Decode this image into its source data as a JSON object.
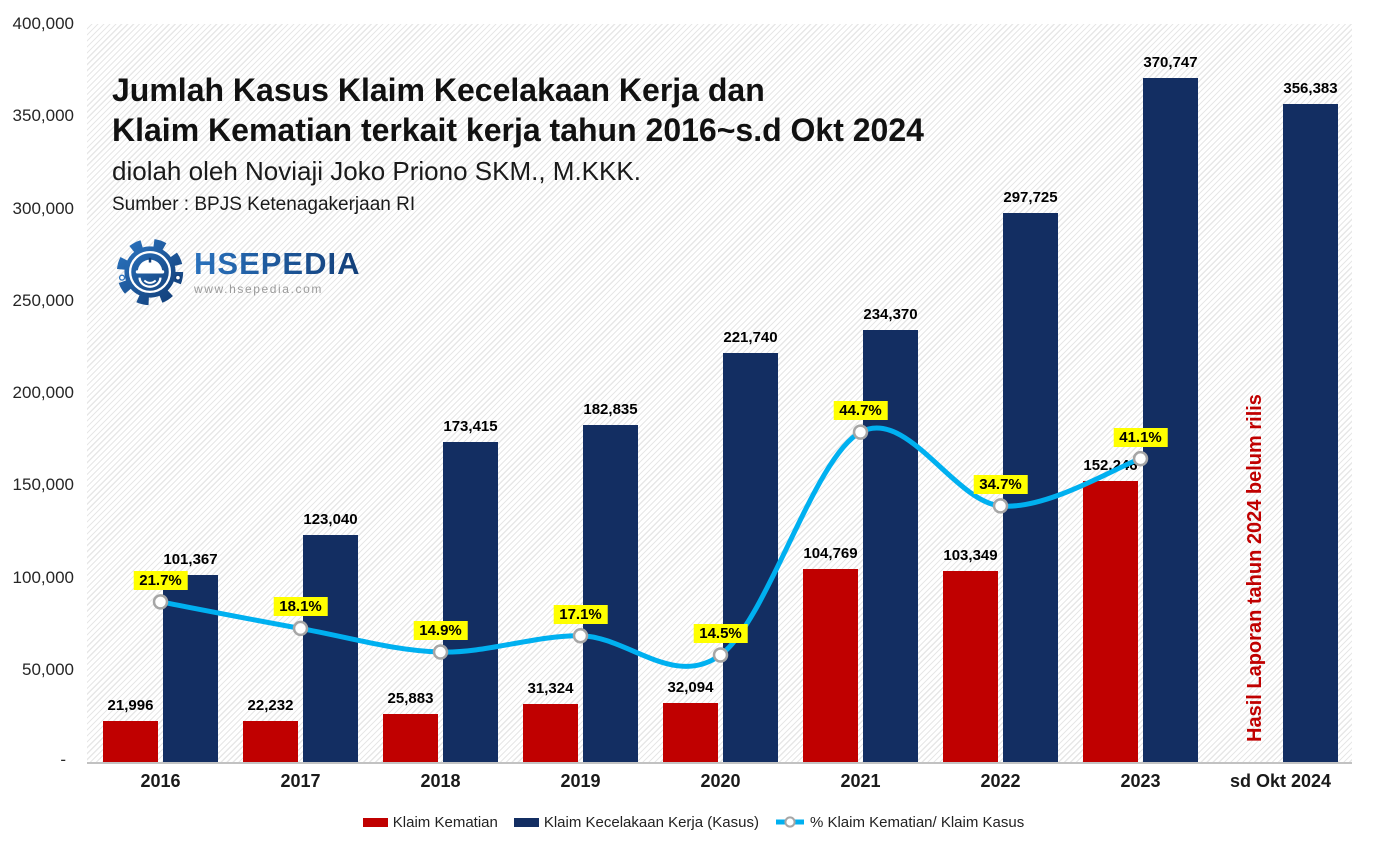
{
  "header": {
    "title_line1": "Jumlah Kasus Klaim Kecelakaan Kerja dan",
    "title_line2": "Klaim Kematian terkait kerja tahun 2016~s.d Okt 2024",
    "subtitle": "diolah oleh Noviaji Joko Priono SKM., M.KKK.",
    "source": "Sumber : BPJS Ketenagakerjaan RI"
  },
  "logo": {
    "text": "HSEPEDIA",
    "url": "www.hsepedia.com",
    "color": "#1C5FA9"
  },
  "annotation": {
    "text": "Hasil Laporan tahun 2024 belum rilis",
    "color": "#C00000"
  },
  "chart_data": {
    "type": "bar",
    "title": "Jumlah Kasus Klaim Kecelakaan Kerja dan Klaim Kematian terkait kerja tahun 2016~s.d Okt 2024",
    "categories": [
      "2016",
      "2017",
      "2018",
      "2019",
      "2020",
      "2021",
      "2022",
      "2023",
      "sd Okt 2024"
    ],
    "series": [
      {
        "name": "Klaim Kematian",
        "type": "bar",
        "color": "#C00000",
        "values": [
          21996,
          22232,
          25883,
          31324,
          32094,
          104769,
          103349,
          152246,
          null
        ]
      },
      {
        "name": "Klaim Kecelakaan Kerja (Kasus)",
        "type": "bar",
        "color": "#132E62",
        "values": [
          101367,
          123040,
          173415,
          182835,
          221740,
          234370,
          297725,
          370747,
          356383
        ]
      },
      {
        "name": "% Klaim Kematian/ Klaim Kasus",
        "type": "line",
        "color": "#00B0F0",
        "axis": "secondary",
        "label_bg": "#FFFF00",
        "marker": "white-circle",
        "values": [
          21.7,
          18.1,
          14.9,
          17.1,
          14.5,
          44.7,
          34.7,
          41.1,
          null
        ]
      }
    ],
    "y_axis": {
      "min": 0,
      "max": 400000,
      "tick_step": 50000,
      "zero_label": "-"
    },
    "secondary_axis": {
      "min": 0,
      "max": 100,
      "unit": "%",
      "visible": false
    },
    "grid": false,
    "legend_position": "bottom",
    "plot_background": "diagonal-hatch"
  }
}
